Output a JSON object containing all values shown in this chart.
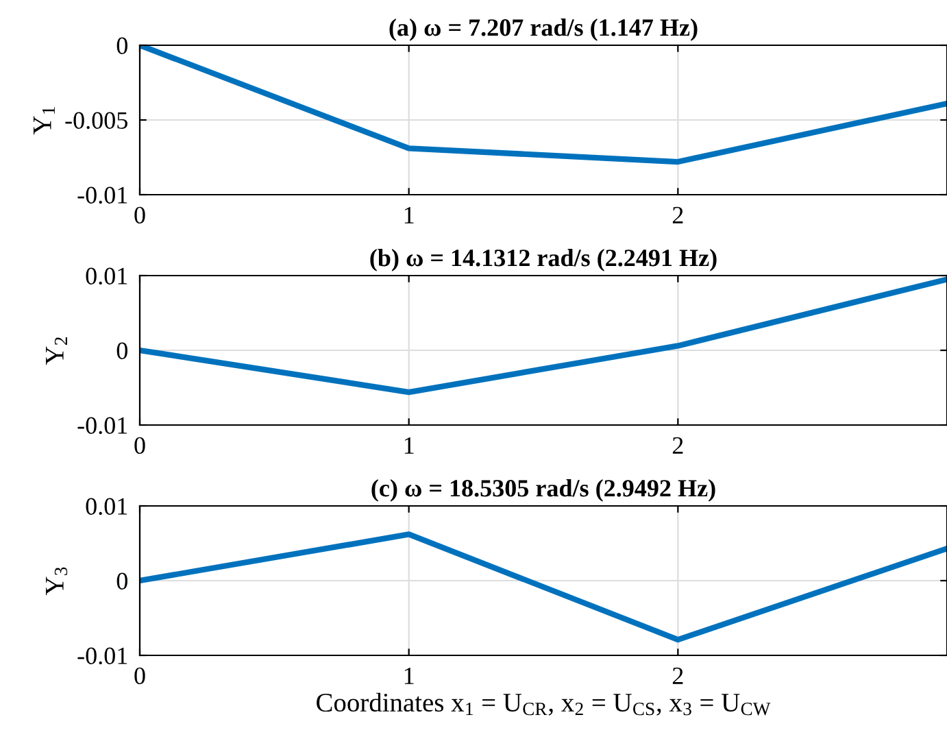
{
  "chart_data": [
    {
      "type": "line",
      "title": "(a) ω = 7.207 rad/s (1.147 Hz)",
      "ylabel": "Y$_{1}$",
      "x": [
        0,
        1,
        2,
        3
      ],
      "series": [
        {
          "color": "#0072bd",
          "values": [
            0,
            -0.0069,
            -0.0078,
            -0.0039
          ]
        }
      ],
      "xlim": [
        0,
        3
      ],
      "xticks": [
        0,
        1,
        2
      ],
      "ylim": [
        -0.01,
        0
      ],
      "yticks": [
        -0.01,
        -0.005,
        0
      ],
      "grid": true
    },
    {
      "type": "line",
      "title": "(b) ω = 14.1312 rad/s (2.2491 Hz)",
      "ylabel": "Y$_{2}$",
      "x": [
        0,
        1,
        2,
        3
      ],
      "series": [
        {
          "color": "#0072bd",
          "values": [
            0,
            -0.0056,
            0.0006,
            0.0095
          ]
        }
      ],
      "xlim": [
        0,
        3
      ],
      "xticks": [
        0,
        1,
        2
      ],
      "ylim": [
        -0.01,
        0.01
      ],
      "yticks": [
        -0.01,
        0,
        0.01
      ],
      "grid": true
    },
    {
      "type": "line",
      "title": "(c) ω = 18.5305 rad/s (2.9492 Hz)",
      "ylabel": "Y$_{3}$",
      "xlabel": "Coordinates x$_{1}$ = U$_{CR}$, x$_{2}$ = U$_{CS}$, x$_{3}$ = U$_{CW}$",
      "x": [
        0,
        1,
        2,
        3
      ],
      "series": [
        {
          "color": "#0072bd",
          "values": [
            0,
            0.0062,
            -0.0079,
            0.0043
          ]
        }
      ],
      "xlim": [
        0,
        3
      ],
      "xticks": [
        0,
        1,
        2
      ],
      "ylim": [
        -0.01,
        0.01
      ],
      "yticks": [
        -0.01,
        0,
        0.01
      ],
      "grid": true
    }
  ]
}
